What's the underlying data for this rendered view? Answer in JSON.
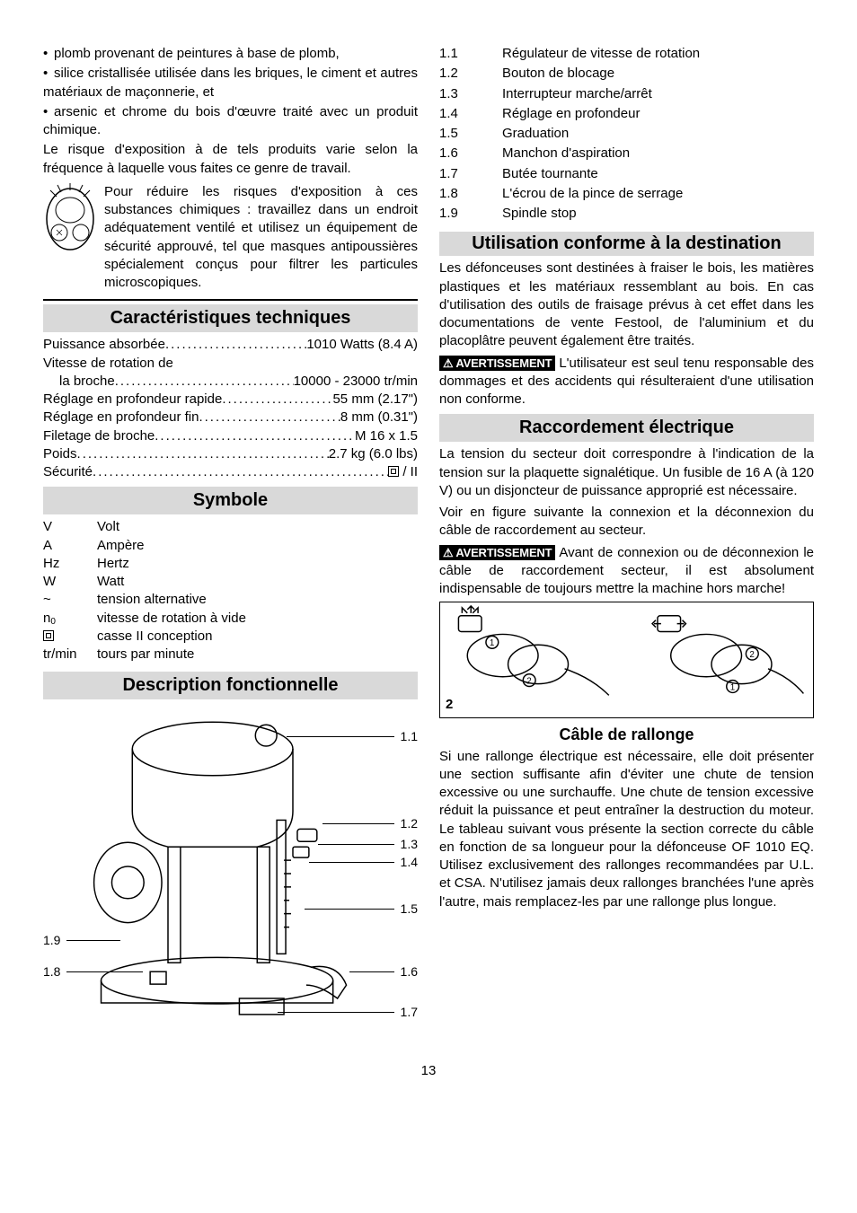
{
  "left": {
    "bullets": [
      "plomb provenant de peintures à base de plomb,",
      "silice cristallisée utilisée dans les briques, le ciment et autres matériaux de maçonnerie, et",
      "arsenic et chrome du bois d'œuvre traité avec un produit chimique."
    ],
    "risk_para": "Le risque d'exposition à de tels produits varie selon la fréquence à laquelle vous faites ce genre de travail.",
    "mask_para": "Pour réduire les risques d'exposition à ces substances chimiques : travaillez dans un endroit adéquatement ventilé et utilisez un équipement de sécurité approuvé, tel que masques antipoussières spécialement conçus pour filtrer les particules microscopiques.",
    "tech_title": "Caractéristiques techniques",
    "specs": [
      {
        "label": "Puissance absorbée",
        "value": "1010 Watts (8.4 A)"
      },
      {
        "label": "Vitesse de rotation de",
        "value": ""
      },
      {
        "label": "la broche",
        "value": "10000 - 23000 tr/min",
        "indent": true
      },
      {
        "label": "Réglage en profondeur rapide",
        "value": "55 mm (2.17\")"
      },
      {
        "label": "Réglage en profondeur fin",
        "value": "8 mm (0.31\")"
      },
      {
        "label": "Filetage de broche",
        "value": "M 16 x 1.5"
      },
      {
        "label": "Poids",
        "value": "2.7 kg (6.0 lbs)"
      },
      {
        "label": "Sécurité",
        "value": "□ / II",
        "insul": true
      }
    ],
    "sym_title": "Symbole",
    "symbols": [
      {
        "k": "V",
        "v": "Volt"
      },
      {
        "k": "A",
        "v": "Ampère"
      },
      {
        "k": "Hz",
        "v": "Hertz"
      },
      {
        "k": "W",
        "v": "Watt"
      },
      {
        "k": "~",
        "v": "tension alternative"
      },
      {
        "k": "n0",
        "v": "vitesse de rotation à vide",
        "n0": true
      },
      {
        "k": "□",
        "v": "casse II conception",
        "insul": true
      },
      {
        "k": "tr/min",
        "v": "tours par minute"
      }
    ],
    "desc_title": "Description fonctionnelle",
    "callouts_right": [
      "1.1",
      "1.2",
      "1.3",
      "1.4",
      "1.5",
      "1.6",
      "1.7"
    ],
    "callouts_left": [
      "1.9",
      "1.8"
    ]
  },
  "right": {
    "parts": [
      {
        "k": "1.1",
        "v": "Régulateur de vitesse de rotation"
      },
      {
        "k": "1.2",
        "v": "Bouton de blocage"
      },
      {
        "k": "1.3",
        "v": "Interrupteur marche/arrêt"
      },
      {
        "k": "1.4",
        "v": "Réglage en profondeur"
      },
      {
        "k": "1.5",
        "v": "Graduation"
      },
      {
        "k": "1.6",
        "v": "Manchon d'aspiration"
      },
      {
        "k": "1.7",
        "v": "Butée tournante"
      },
      {
        "k": "1.8",
        "v": "L'écrou de la pince de serrage"
      },
      {
        "k": "1.9",
        "v": "Spindle stop"
      }
    ],
    "use_title": "Utilisation conforme à la destination",
    "use_para": "Les défonceuses sont destinées à fraiser le bois, les matières plastiques et les matériaux ressemblant au bois. En cas d'utilisation des outils de fraisage prévus à cet effet dans les documentations de vente Festool, de l'aluminium et du placoplâtre peuvent également être traités.",
    "use_warn": "L'utilisateur est seul tenu responsable des dommages et des accidents qui résulteraient d'une utilisation non conforme.",
    "elec_title": "Raccordement électrique",
    "elec_p1": "La tension du secteur doit correspondre à l'indication de la tension sur la plaquette signalétique. Un fusible de 16 A (à 120 V) ou un disjoncteur de puissance approprié est nécessaire.",
    "elec_p2": "Voir en figure suivante la connexion et la déconnexion du câble de raccordement au secteur.",
    "elec_warn": "Avant de connexion ou de déconnexion le câble de raccordement secteur, il est absolument indispensable de toujours mettre la machine hors marche!",
    "fig2_label": "2",
    "ext_title": "Câble de rallonge",
    "ext_para": "Si une rallonge électrique est nécessaire, elle doit présenter une section suffisante afin d'éviter une chute de tension excessive ou une surchauffe. Une chute de tension excessive réduit la puissance et peut entraîner la destruction du moteur. Le tableau suivant vous présente la section correcte du câble en fonction de sa longueur pour la défonceuse OF 1010 EQ. Utilisez exclusivement des rallonges recommandées par U.L. et CSA. N'utilisez jamais deux rallonges branchées l'une après l'autre, mais remplacez-les par une rallonge plus longue.",
    "warn_label": "AVERTISSEMENT"
  },
  "page": "13"
}
